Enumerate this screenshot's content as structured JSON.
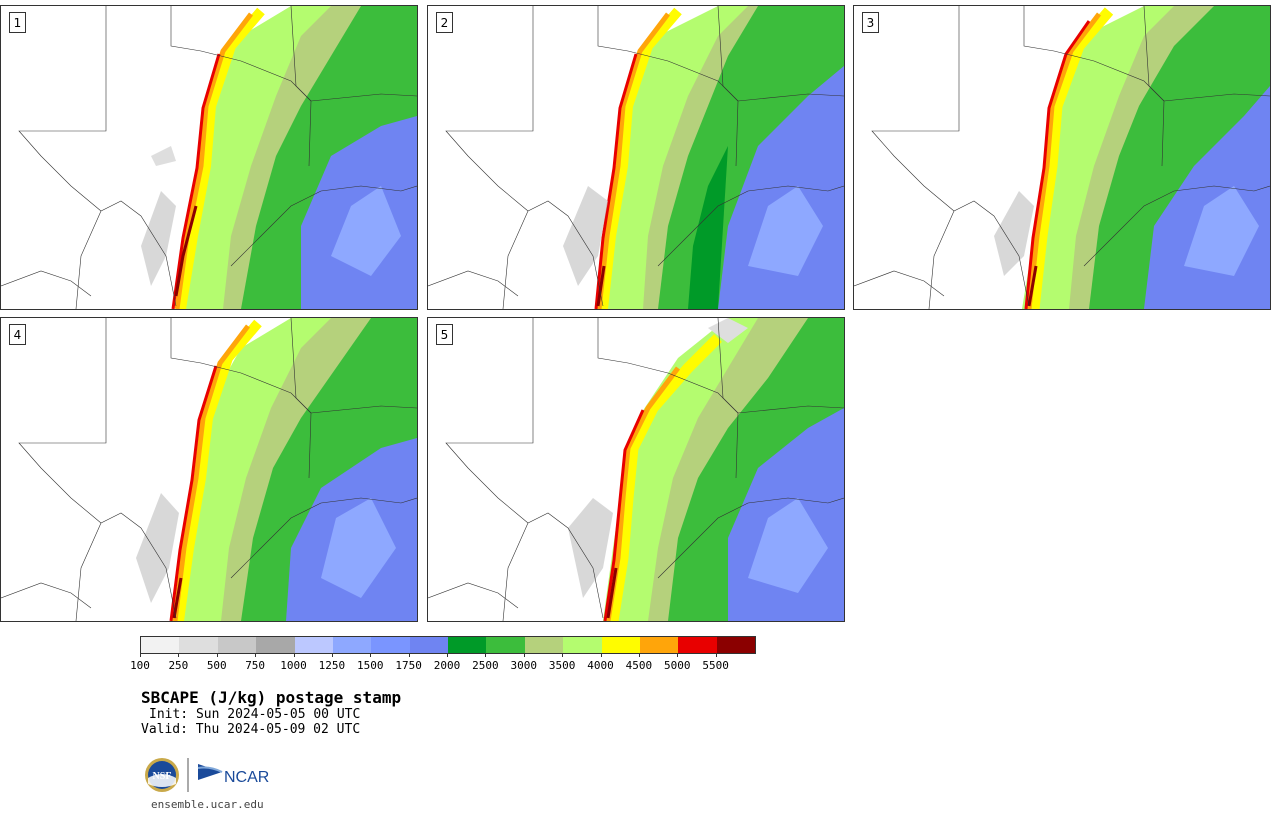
{
  "panels": [
    {
      "label": "1"
    },
    {
      "label": "2"
    },
    {
      "label": "3"
    },
    {
      "label": "4"
    },
    {
      "label": "5"
    }
  ],
  "colorbar": {
    "colors": [
      "#f2f2f2",
      "#dedede",
      "#c8c8c8",
      "#a8a8a8",
      "#bcc8ff",
      "#8ea8ff",
      "#7a95ff",
      "#6f84f2",
      "#009a28",
      "#3cbd3c",
      "#b5d17c",
      "#b4fc6f",
      "#fffc00",
      "#ffa50a",
      "#e80000",
      "#8b0000"
    ],
    "tick_labels": [
      "100",
      "250",
      "500",
      "750",
      "1000",
      "1250",
      "1500",
      "1750",
      "2000",
      "2500",
      "3000",
      "3500",
      "4000",
      "4500",
      "5000",
      "5500"
    ]
  },
  "title": "SBCAPE (J/kg) postage stamp",
  "init": "Init: Sun 2024-05-05 00 UTC",
  "valid": "Valid: Thu 2024-05-09 02 UTC",
  "logos": {
    "nsf_text": "NSF",
    "ncar_text": "NCAR"
  },
  "url": "ensemble.ucar.edu"
}
